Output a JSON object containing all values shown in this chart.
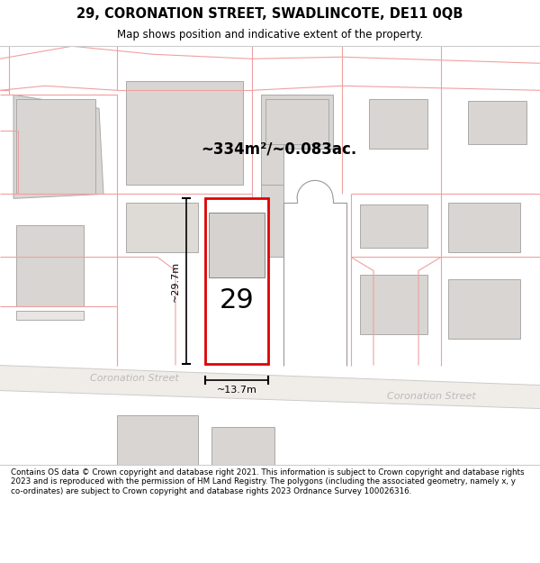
{
  "title": "29, CORONATION STREET, SWADLINCOTE, DE11 0QB",
  "subtitle": "Map shows position and indicative extent of the property.",
  "footer": "Contains OS data © Crown copyright and database right 2021. This information is subject to Crown copyright and database rights 2023 and is reproduced with the permission of HM Land Registry. The polygons (including the associated geometry, namely x, y co-ordinates) are subject to Crown copyright and database rights 2023 Ordnance Survey 100026316.",
  "area_label": "~334m²/~0.083ac.",
  "width_label": "~13.7m",
  "height_label": "~29.7m",
  "plot_number": "29",
  "street_label_left": "Coronation Street",
  "street_label_right": "Coronation Street",
  "map_bg": "#ffffff",
  "building_fill": "#d8d5d2",
  "building_edge": "#aaaaaa",
  "plot_outline_color": "#dd0000",
  "pink_line_color": "#f0a0a0",
  "dim_line_color": "#000000",
  "road_text_color": "#bbbbbb",
  "title_fontsize": 10.5,
  "subtitle_fontsize": 8.5,
  "footer_fontsize": 6.3,
  "area_fontsize": 12,
  "dim_fontsize": 8,
  "plot_num_fontsize": 22,
  "street_fontsize": 8
}
